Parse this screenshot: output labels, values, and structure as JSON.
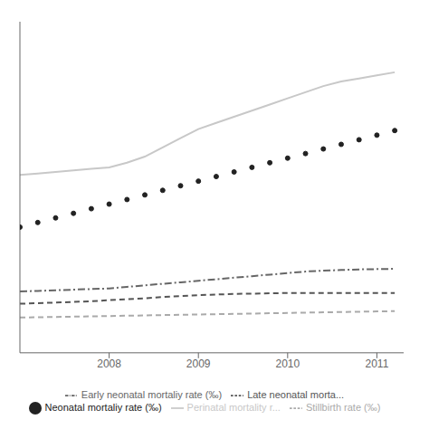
{
  "chart_data": {
    "type": "line",
    "x": [
      2007,
      2007.2,
      2007.4,
      2007.6,
      2007.8,
      2008,
      2008.2,
      2008.4,
      2008.6,
      2008.8,
      2009,
      2009.2,
      2009.4,
      2009.6,
      2009.8,
      2010,
      2010.2,
      2010.4,
      2010.6,
      2010.8,
      2011,
      2011.2
    ],
    "series": [
      {
        "name": "Perinatal mortality r...",
        "color": "#c8c8c8",
        "line_style": "solid",
        "marker": "none",
        "values": [
          5.5,
          5.55,
          5.6,
          5.65,
          5.7,
          5.75,
          5.9,
          6.1,
          6.4,
          6.7,
          7.0,
          7.2,
          7.4,
          7.6,
          7.8,
          8.0,
          8.2,
          8.4,
          8.55,
          8.65,
          8.75,
          8.85
        ]
      },
      {
        "name": "Neonatal mortaliy rate (‰)",
        "color": "#222222",
        "line_style": "none",
        "marker": "dot",
        "values": [
          3.8,
          3.95,
          4.1,
          4.25,
          4.4,
          4.55,
          4.7,
          4.85,
          5.0,
          5.15,
          5.3,
          5.45,
          5.6,
          5.75,
          5.9,
          6.05,
          6.2,
          6.35,
          6.5,
          6.65,
          6.8,
          6.95
        ]
      },
      {
        "name": "Early neonatal mortaliy rate (‰)",
        "color": "#666666",
        "line_style": "dashdot",
        "marker": "none",
        "values": [
          1.7,
          1.72,
          1.74,
          1.76,
          1.78,
          1.8,
          1.85,
          1.9,
          1.95,
          2.0,
          2.05,
          2.1,
          2.15,
          2.2,
          2.25,
          2.3,
          2.35,
          2.38,
          2.4,
          2.42,
          2.43,
          2.44
        ]
      },
      {
        "name": "Late neonatal morta...",
        "color": "#555555",
        "line_style": "dashed",
        "marker": "none",
        "values": [
          1.3,
          1.32,
          1.34,
          1.36,
          1.38,
          1.42,
          1.45,
          1.48,
          1.52,
          1.55,
          1.58,
          1.6,
          1.62,
          1.63,
          1.64,
          1.65,
          1.65,
          1.65,
          1.65,
          1.65,
          1.65,
          1.65
        ]
      },
      {
        "name": "Stillbirth rate (‰)",
        "color": "#aaaaaa",
        "line_style": "dashed",
        "marker": "none",
        "values": [
          0.85,
          0.86,
          0.87,
          0.88,
          0.89,
          0.9,
          0.91,
          0.92,
          0.93,
          0.94,
          0.95,
          0.96,
          0.97,
          0.98,
          0.99,
          1.0,
          1.01,
          1.02,
          1.03,
          1.04,
          1.05,
          1.06
        ]
      }
    ],
    "xlim": [
      2007.0,
      2011.3
    ],
    "xticks": [
      2008,
      2009,
      2010,
      2011
    ],
    "ylim": [
      -0.3,
      10.5
    ],
    "yticks": [],
    "tick_labels": "x",
    "grid": false,
    "legend": "bottom"
  }
}
